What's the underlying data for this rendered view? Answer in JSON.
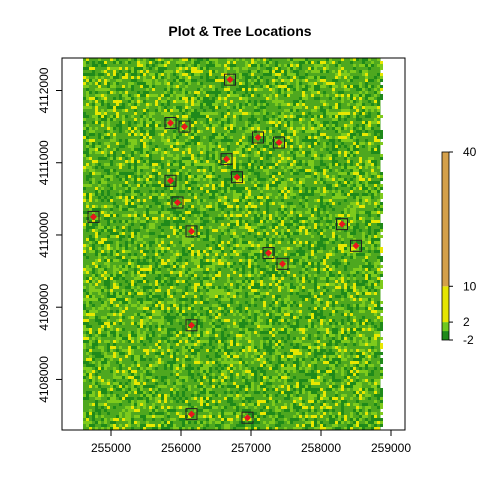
{
  "chart_data": {
    "type": "heatmap",
    "title": "Plot & Tree Locations",
    "xlabel": "",
    "ylabel": "",
    "xlim": [
      254300,
      259200
    ],
    "ylim": [
      4107300,
      4112450
    ],
    "raster_extent": {
      "x": [
        254600,
        258850
      ],
      "y": [
        4107300,
        4112450
      ]
    },
    "x_ticks": [
      255000,
      256000,
      257000,
      258000,
      259000
    ],
    "x_tick_labels": [
      "255000",
      "256000",
      "257000",
      "258000",
      "259000"
    ],
    "y_ticks": [
      4108000,
      4109000,
      4110000,
      4111000,
      4112000
    ],
    "y_tick_labels": [
      "4108000",
      "4109000",
      "4110000",
      "4111000",
      "4112000"
    ],
    "legend": {
      "position": "right",
      "breaks": [
        -2,
        0,
        2,
        10,
        40
      ],
      "labels": [
        "-2",
        "2",
        "10",
        "40"
      ],
      "label_values": [
        -2,
        2,
        10,
        40
      ],
      "colors": [
        "#1f8a1a",
        "#6fc91e",
        "#e6e600",
        "#d4a04a"
      ]
    },
    "raster_colors": {
      "dark": "#1f8a1a",
      "light": "#4ea81f",
      "bright": "#7ecb1c",
      "yellow": "#e8e800"
    },
    "plots": [
      {
        "x": 256700,
        "y": 4112150
      },
      {
        "x": 255850,
        "y": 4111550
      },
      {
        "x": 256050,
        "y": 4111500
      },
      {
        "x": 257100,
        "y": 4111350
      },
      {
        "x": 257400,
        "y": 4111280
      },
      {
        "x": 256650,
        "y": 4111050
      },
      {
        "x": 255850,
        "y": 4110750
      },
      {
        "x": 256800,
        "y": 4110800
      },
      {
        "x": 255950,
        "y": 4110450
      },
      {
        "x": 254750,
        "y": 4110250
      },
      {
        "x": 256150,
        "y": 4110050
      },
      {
        "x": 258300,
        "y": 4110150
      },
      {
        "x": 257250,
        "y": 4109750
      },
      {
        "x": 258500,
        "y": 4109850
      },
      {
        "x": 257450,
        "y": 4109600
      },
      {
        "x": 256150,
        "y": 4108750
      },
      {
        "x": 256150,
        "y": 4107520
      },
      {
        "x": 256950,
        "y": 4107470
      }
    ]
  }
}
